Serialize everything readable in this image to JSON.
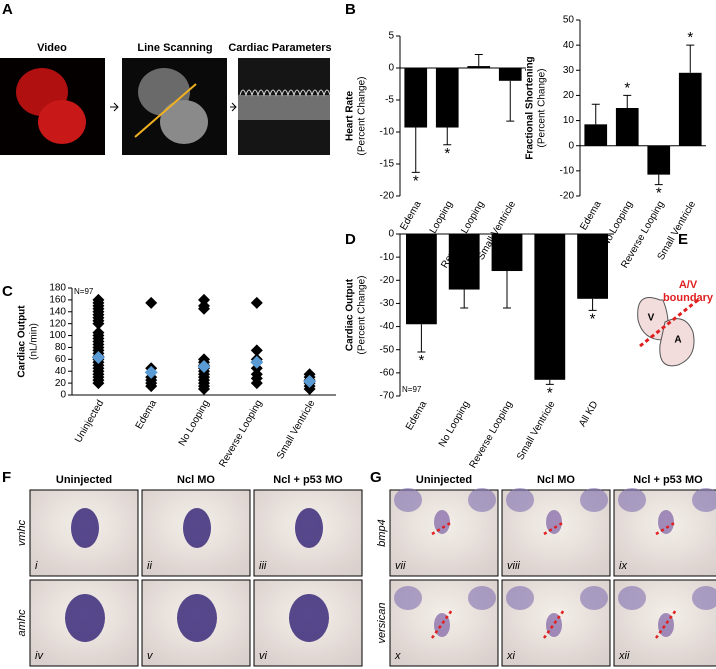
{
  "panel_labels": [
    "A",
    "B",
    "C",
    "D",
    "E",
    "F",
    "G"
  ],
  "panel_a": {
    "steps": [
      "Video",
      "Line Scanning",
      "Cardiac Parameters"
    ]
  },
  "panel_e": {
    "boundary": [
      "A/V",
      "boundary"
    ],
    "chambers": [
      "V",
      "A"
    ]
  },
  "panel_f": {
    "columns": [
      "Uninjected",
      "Ncl MO",
      "Ncl + p53 MO"
    ],
    "rows": [
      "vmhc",
      "amhc"
    ],
    "images": [
      "i",
      "ii",
      "iii",
      "iv",
      "v",
      "vi"
    ]
  },
  "panel_g": {
    "columns": [
      "Uninjected",
      "Ncl MO",
      "Ncl + p53 MO"
    ],
    "rows": [
      "bmp4",
      "versican"
    ],
    "images": [
      "vii",
      "viii",
      "ix",
      "x",
      "xi",
      "xii"
    ]
  },
  "chart_data": [
    {
      "type": "bar",
      "y_label": [
        "Heart Rate",
        "(Percent Change)"
      ],
      "categories": [
        "Edema",
        "No Looping",
        "Reverse Looping",
        "Small Ventricle"
      ],
      "values": [
        -9.3,
        -9.3,
        0.3,
        -2.0
      ],
      "errors": [
        7.0,
        2.7,
        1.8,
        6.3
      ],
      "significance": [
        "*",
        "*",
        null,
        null
      ],
      "color": "#000000",
      "ylim": [
        -20,
        5
      ],
      "yticks": [
        -20,
        -15,
        -10,
        -5,
        0,
        5
      ]
    },
    {
      "type": "bar",
      "y_label": [
        "Fractional Shortening",
        "(Percent Change)"
      ],
      "categories": [
        "Edema",
        "No Looping",
        "Reverse Looping",
        "Small Ventricle"
      ],
      "values": [
        8.5,
        15,
        -11.5,
        29
      ],
      "errors": [
        8,
        5,
        4,
        11
      ],
      "significance": [
        null,
        "*",
        "*",
        "*"
      ],
      "color": "#000000",
      "ylim": [
        -20,
        50
      ],
      "yticks": [
        -20,
        -10,
        0,
        10,
        20,
        30,
        40,
        50
      ]
    },
    {
      "type": "scatter",
      "y_label": [
        "Cardiac Output",
        "(nL/min)"
      ],
      "note": "N=97",
      "categories": [
        "Uninjected",
        "Edema",
        "No Looping",
        "Reverse Looping",
        "Small Ventricle"
      ],
      "points": [
        [
          160,
          155,
          150,
          145,
          140,
          135,
          130,
          125,
          120,
          105,
          100,
          95,
          90,
          85,
          80,
          75,
          70,
          65,
          60,
          55,
          50,
          45,
          40,
          35,
          30,
          25,
          20
        ],
        [
          155,
          45,
          38,
          30,
          25,
          20,
          15
        ],
        [
          160,
          150,
          145,
          60,
          55,
          50,
          45,
          40,
          35,
          30,
          25,
          20,
          15,
          10
        ],
        [
          155,
          75,
          60,
          45,
          35,
          28,
          20
        ],
        [
          35,
          30,
          25,
          20,
          15,
          10
        ]
      ],
      "means": [
        63,
        38,
        48,
        55,
        23
      ],
      "color": "#000000",
      "mean_color": "#5b9bd5",
      "ylim": [
        0,
        180
      ],
      "yticks": [
        0,
        20,
        40,
        60,
        80,
        100,
        120,
        140,
        160,
        180
      ]
    },
    {
      "type": "bar",
      "y_label": [
        "Cardiac Output",
        "(Percent Change)"
      ],
      "note": "N=97",
      "categories": [
        "Edema",
        "No Looping",
        "Reverse Looping",
        "Small Ventricle",
        "All KD"
      ],
      "values": [
        -39,
        -24,
        -16,
        -63,
        -28
      ],
      "errors": [
        12,
        8,
        16,
        2,
        5
      ],
      "significance": [
        "*",
        null,
        null,
        "*",
        "*"
      ],
      "color": "#000000",
      "ylim": [
        -70,
        0
      ],
      "yticks": [
        -70,
        -60,
        -50,
        -40,
        -30,
        -20,
        -10,
        0
      ]
    }
  ]
}
